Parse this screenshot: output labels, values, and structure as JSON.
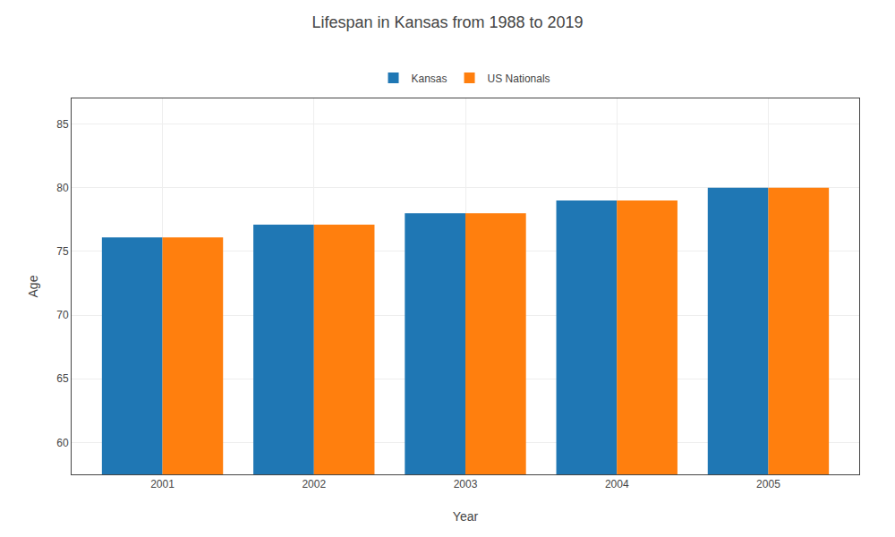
{
  "chart_data": {
    "type": "bar",
    "title": "Lifespan in Kansas from 1988 to 2019",
    "xlabel": "Year",
    "ylabel": "Age",
    "categories": [
      "2001",
      "2002",
      "2003",
      "2004",
      "2005"
    ],
    "series": [
      {
        "name": "Kansas",
        "values": [
          76.1,
          77.1,
          78.0,
          79.0,
          80.0
        ]
      },
      {
        "name": "US Nationals",
        "values": [
          76.1,
          77.1,
          78.0,
          79.0,
          80.0
        ]
      }
    ],
    "ylim": [
      57.5,
      87
    ],
    "yticks": [
      60,
      65,
      70,
      75,
      80,
      85
    ],
    "grid": true,
    "legend": "top"
  }
}
